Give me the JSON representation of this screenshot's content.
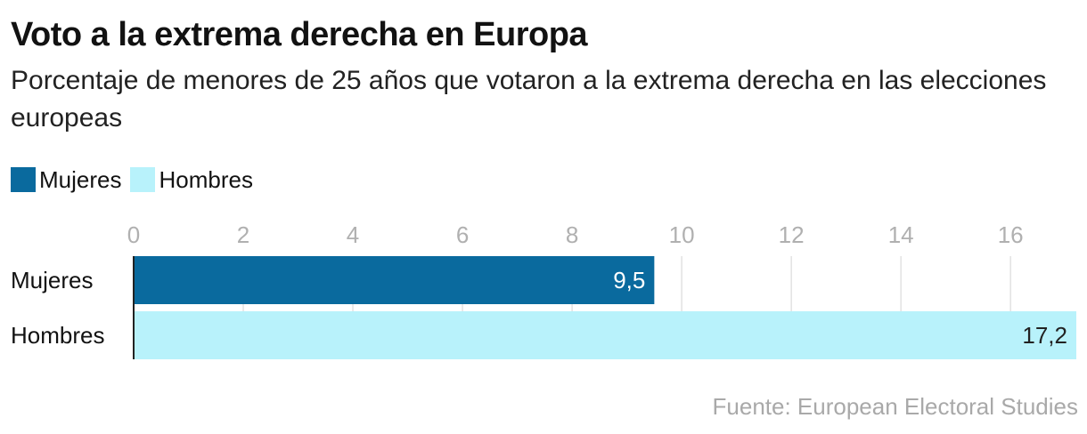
{
  "title": "Voto a la extrema derecha en Europa",
  "subtitle": "Porcentaje de menores de 25 años que votaron a la extrema derecha en las elecciones europeas",
  "legend": [
    {
      "label": "Mujeres",
      "color": "#0a6a9e"
    },
    {
      "label": "Hombres",
      "color": "#b8f2fb"
    }
  ],
  "source": "Fuente: European Electoral Studies",
  "chart_data": {
    "type": "bar",
    "orientation": "horizontal",
    "categories": [
      "Mujeres",
      "Hombres"
    ],
    "values": [
      9.5,
      17.2
    ],
    "value_labels": [
      "9,5",
      "17,2"
    ],
    "colors": [
      "#0a6a9e",
      "#b8f2fb"
    ],
    "label_colors": [
      "#ffffff",
      "#222222"
    ],
    "xticks": [
      0,
      2,
      4,
      6,
      8,
      10,
      12,
      14,
      16
    ],
    "xlim": [
      0,
      17.2
    ],
    "grid": true,
    "title": "Voto a la extrema derecha en Europa",
    "xlabel": "",
    "ylabel": ""
  }
}
